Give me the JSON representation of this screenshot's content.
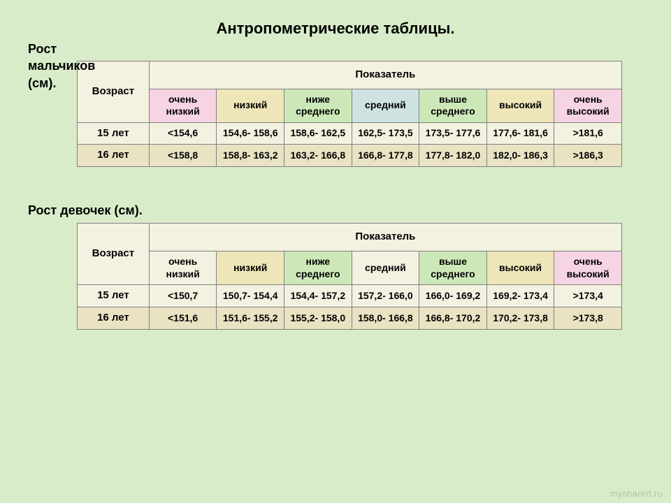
{
  "page": {
    "background_color": "#d9ecc9",
    "title": "Антропометрические таблицы.",
    "title_fontsize": 22,
    "section_fontsize": 18,
    "watermark": "myshared.ru"
  },
  "boys": {
    "title_lines": [
      "Рост",
      "мальчиков",
      "(см)."
    ],
    "header_age": "Возраст",
    "header_indicator": "Показатель",
    "columns": [
      {
        "label": "очень низкий",
        "bg": "#f6d4e4"
      },
      {
        "label": "низкий",
        "bg": "#eee6b8"
      },
      {
        "label": "ниже среднего",
        "bg": "#cde8b8"
      },
      {
        "label": "средний",
        "bg": "#cfe2e2"
      },
      {
        "label": "выше среднего",
        "bg": "#cde8b8"
      },
      {
        "label": "высокий",
        "bg": "#eee6b8"
      },
      {
        "label": "очень высокий",
        "bg": "#f6d4e4"
      }
    ],
    "rows": [
      {
        "age": "15 лет",
        "bg": "#f3f1e0",
        "cells": [
          "<154,6",
          "154,6- 158,6",
          "158,6- 162,5",
          "162,5- 173,5",
          "173,5- 177,6",
          "177,6- 181,6",
          ">181,6"
        ]
      },
      {
        "age": "16 лет",
        "bg": "#e9e3c3",
        "cells": [
          "<158,8",
          "158,8- 163,2",
          "163,2- 166,8",
          "166,8- 177,8",
          "177,8- 182,0",
          "182,0- 186,3",
          ">186,3"
        ]
      }
    ],
    "age_header_bg": "#f3f1e0",
    "indicator_bg": "#f3f1e0"
  },
  "girls": {
    "title": "Рост девочек  (см).",
    "header_age": "Возраст",
    "header_indicator": "Показатель",
    "columns": [
      {
        "label": "очень низкий",
        "bg": "#f3f1e0"
      },
      {
        "label": "низкий",
        "bg": "#eee6b8"
      },
      {
        "label": "ниже среднего",
        "bg": "#cde8b8"
      },
      {
        "label": "средний",
        "bg": "#f3f1e0"
      },
      {
        "label": "выше среднего",
        "bg": "#cde8b8"
      },
      {
        "label": "высокий",
        "bg": "#eee6b8"
      },
      {
        "label": "очень высокий",
        "bg": "#f6d4e4"
      }
    ],
    "rows": [
      {
        "age": "15 лет",
        "bg": "#f3f1e0",
        "cells": [
          "<150,7",
          "150,7- 154,4",
          "154,4- 157,2",
          "157,2- 166,0",
          "166,0- 169,2",
          "169,2- 173,4",
          ">173,4"
        ]
      },
      {
        "age": "16 лет",
        "bg": "#e9e3c3",
        "cells": [
          "<151,6",
          "151,6- 155,2",
          "155,2- 158,0",
          "158,0- 166,8",
          "166,8- 170,2",
          "170,2- 173,8",
          ">173,8"
        ]
      }
    ],
    "age_header_bg": "#f3f1e0",
    "indicator_bg": "#f3f1e0"
  }
}
